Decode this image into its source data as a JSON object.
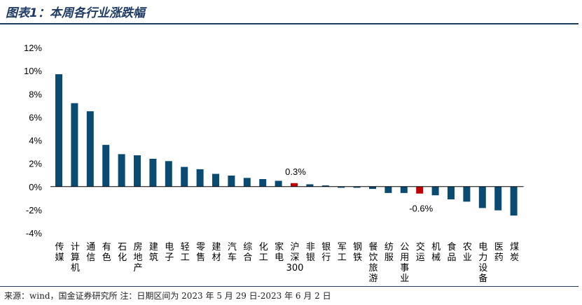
{
  "title": "图表1：本周各行业涨跌幅",
  "source_note": "来源：wind，国金证券研究所  注：日期区间为 2023 年 5 月 29 日-2023 年 6 月 2 日",
  "chart_data": {
    "type": "bar",
    "title": "图表1：本周各行业涨跌幅",
    "xlabel": "",
    "ylabel": "",
    "ylim": [
      -4,
      12
    ],
    "ytick_labels": [
      "-4%",
      "-2%",
      "0%",
      "2%",
      "4%",
      "6%",
      "8%",
      "10%",
      "12%"
    ],
    "categories": [
      "传媒",
      "计算机",
      "通信",
      "有色",
      "石化",
      "房地产",
      "建筑",
      "电子",
      "轻工",
      "零售",
      "建材",
      "汽车",
      "综合",
      "化工",
      "家电",
      "沪深300",
      "非银",
      "银行",
      "军工",
      "钢铁",
      "餐饮旅游",
      "纺服",
      "公用事业",
      "交运",
      "机械",
      "食品",
      "农业",
      "电力设备",
      "医药",
      "煤炭"
    ],
    "values": [
      9.7,
      7.2,
      6.5,
      3.6,
      2.8,
      2.7,
      2.4,
      2.2,
      1.7,
      1.5,
      1.1,
      0.95,
      0.75,
      0.65,
      0.5,
      0.3,
      0.2,
      0.1,
      -0.1,
      -0.1,
      -0.2,
      -0.55,
      -0.55,
      -0.6,
      -0.75,
      -1.1,
      -1.3,
      -1.85,
      -2.05,
      -2.5
    ],
    "highlight_color": "#c00000",
    "bar_color": "#0b4a71",
    "highlighted_categories": [
      "沪深300",
      "交运"
    ],
    "data_labels": [
      {
        "category": "沪深300",
        "text": "0.3%"
      },
      {
        "category": "交运",
        "text": "-0.6%"
      }
    ]
  }
}
